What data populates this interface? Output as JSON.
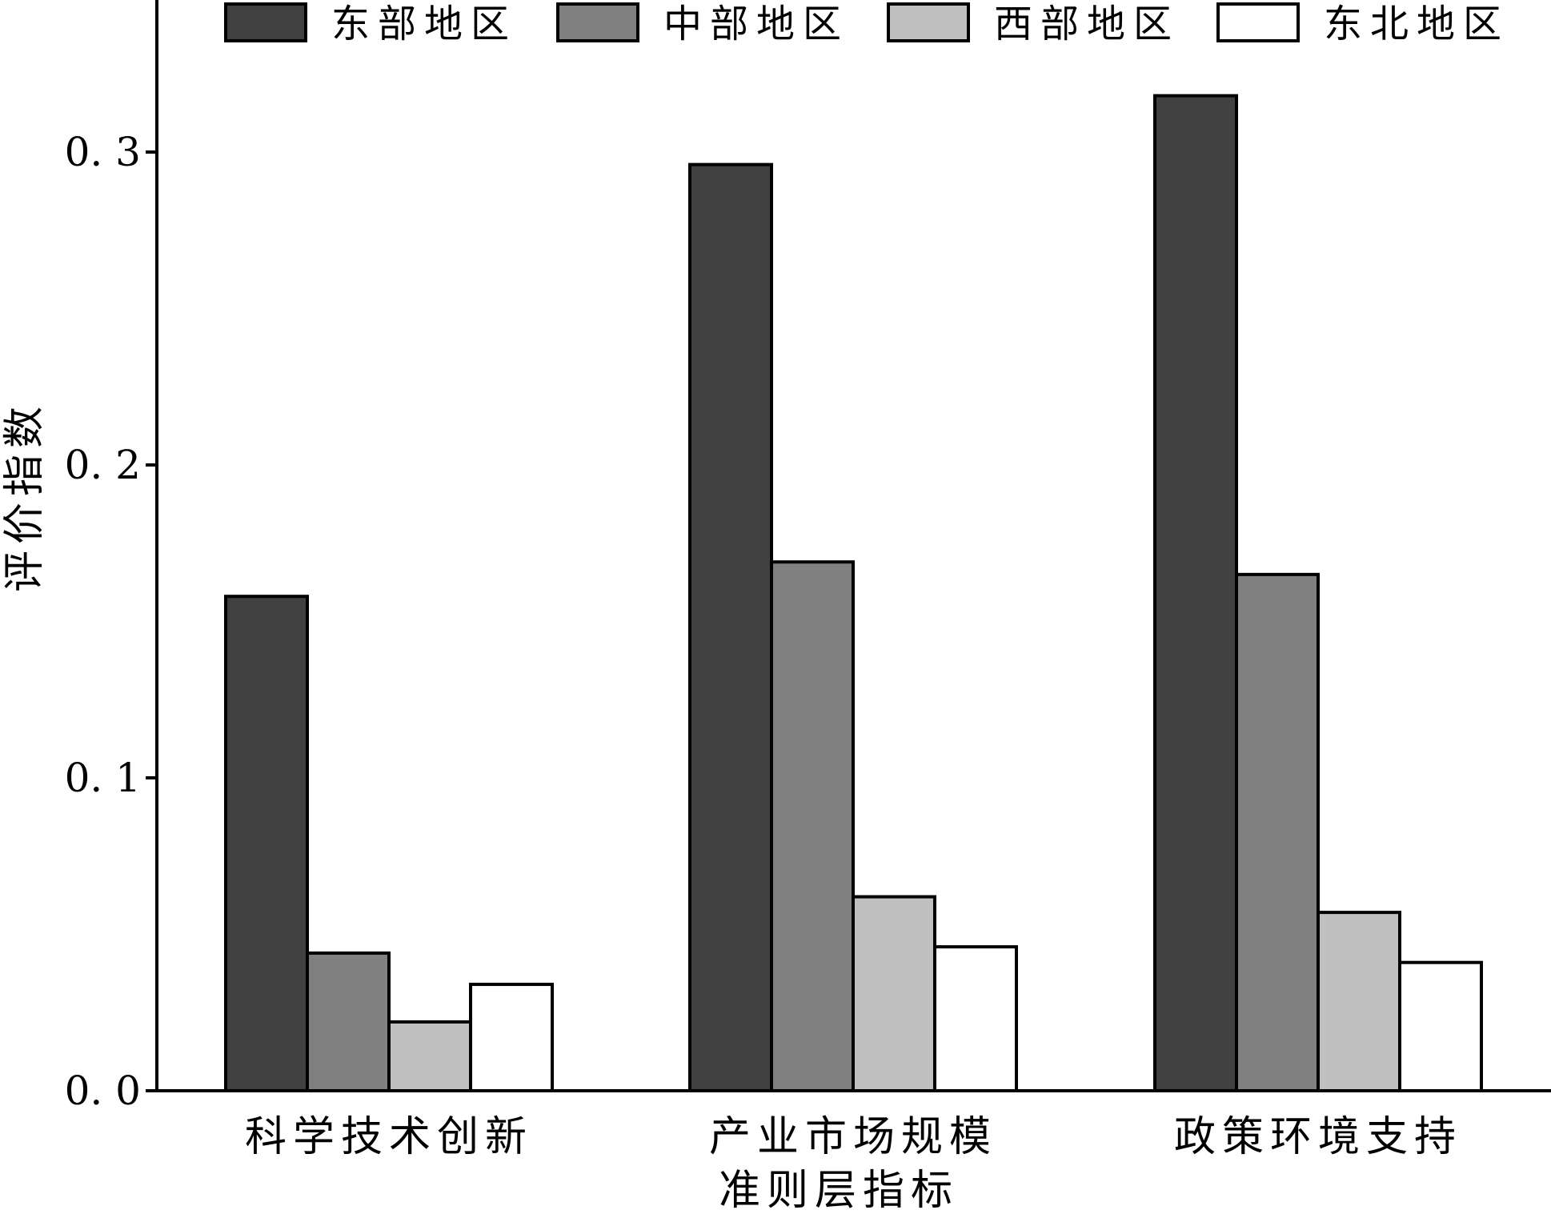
{
  "chart_data": {
    "type": "bar",
    "title": "",
    "xlabel": "准则层指标",
    "ylabel": "评价指数",
    "categories": [
      "科学技术创新",
      "产业市场规模",
      "政策环境支持"
    ],
    "series": [
      {
        "name": "东部地区",
        "values": [
          0.158,
          0.296,
          0.318
        ],
        "color": "#404040"
      },
      {
        "name": "中部地区",
        "values": [
          0.044,
          0.169,
          0.165
        ],
        "color": "#808080"
      },
      {
        "name": "西部地区",
        "values": [
          0.022,
          0.062,
          0.057
        ],
        "color": "#c0c0c0"
      },
      {
        "name": "东北地区",
        "values": [
          0.034,
          0.046,
          0.041
        ],
        "color": "#ffffff"
      }
    ],
    "ylim": [
      0,
      0.345
    ],
    "yticks": [
      0.0,
      0.1,
      0.2,
      0.3
    ],
    "ytick_labels": [
      "0. 0",
      "0. 1",
      "0. 2",
      "0. 3"
    ],
    "legend": "top",
    "grid": false
  }
}
